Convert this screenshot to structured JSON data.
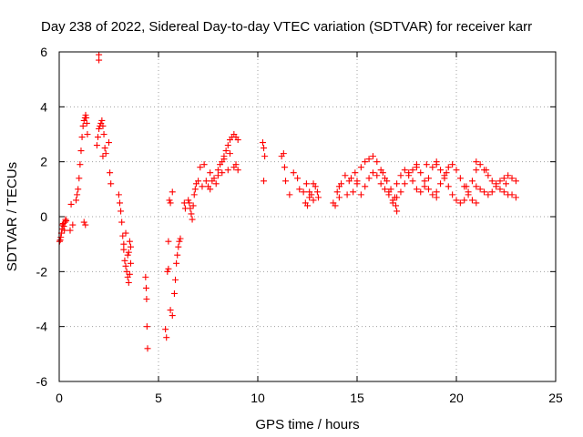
{
  "chart_data": {
    "type": "scatter",
    "title": "Day 238 of 2022, Sidereal Day-to-day VTEC variation (SDTVAR) for receiver karr",
    "xlabel": "GPS time / hours",
    "ylabel": "SDTVAR / TECUs",
    "xlim": [
      0,
      25
    ],
    "ylim": [
      -6,
      6
    ],
    "xticks": [
      0,
      5,
      10,
      15,
      20,
      25
    ],
    "yticks": [
      -6,
      -4,
      -2,
      0,
      2,
      4,
      6
    ],
    "xtick_labels": [
      "0",
      "5",
      "10",
      "15",
      "20",
      "25"
    ],
    "ytick_labels": [
      "-6",
      "-4",
      "-2",
      "0",
      "2",
      "4",
      "6"
    ],
    "grid": true,
    "marker": "+",
    "colors": {
      "series": "#ff0000",
      "grid": "#a0a0a0",
      "axes": "#000000"
    },
    "series": [
      {
        "name": "SDTVAR",
        "x": [
          0.02,
          0.05,
          0.08,
          0.11,
          0.14,
          0.17,
          0.2,
          0.23,
          0.26,
          0.29,
          0.32,
          0.35,
          0.55,
          0.6,
          0.68,
          0.85,
          0.9,
          0.95,
          1.0,
          1.05,
          1.1,
          1.15,
          1.2,
          1.25,
          1.3,
          1.33,
          1.36,
          1.39,
          1.42,
          1.25,
          1.32,
          1.9,
          1.95,
          2.0,
          2.05,
          2.1,
          2.15,
          2.2,
          2.25,
          2.3,
          2.2,
          2.35,
          2.5,
          2.55,
          2.6,
          2.0,
          2.0,
          3.0,
          3.05,
          3.1,
          3.15,
          3.2,
          3.25,
          3.3,
          3.35,
          3.4,
          3.45,
          3.5,
          3.55,
          3.6,
          3.25,
          3.35,
          3.45,
          3.5,
          3.55,
          3.6,
          4.35,
          4.38,
          4.4,
          4.42,
          4.45,
          5.35,
          5.4,
          5.45,
          5.5,
          5.6,
          5.7,
          5.8,
          5.85,
          5.9,
          5.95,
          6.0,
          6.05,
          6.1,
          5.5,
          5.55,
          5.6,
          5.7,
          6.3,
          6.35,
          6.5,
          6.55,
          6.6,
          6.65,
          6.7,
          6.75,
          6.8,
          6.85,
          6.9,
          7.0,
          7.2,
          7.4,
          7.6,
          7.8,
          8.0,
          8.1,
          8.2,
          8.3,
          8.4,
          8.5,
          8.6,
          8.7,
          8.8,
          8.9,
          9.0,
          7.5,
          7.7,
          8.0,
          8.2,
          8.5,
          8.8,
          9.0,
          7.1,
          7.3,
          7.6,
          7.9,
          8.3,
          8.6,
          8.9,
          10.25,
          10.3,
          10.35,
          10.3,
          11.2,
          11.3,
          11.35,
          11.4,
          11.6,
          11.8,
          12.0,
          12.1,
          12.3,
          12.45,
          12.6,
          12.8,
          13.0,
          12.4,
          12.5,
          12.7,
          12.9,
          13.05,
          12.6,
          12.8,
          13.8,
          13.9,
          14.0,
          14.1,
          14.2,
          14.1,
          14.4,
          14.5,
          14.6,
          14.7,
          14.8,
          14.9,
          15.0,
          15.0,
          15.2,
          15.4,
          15.6,
          15.8,
          16.0,
          16.2,
          16.4,
          16.6,
          16.8,
          17.0,
          15.2,
          15.4,
          15.6,
          15.8,
          16.0,
          16.2,
          16.4,
          16.6,
          16.8,
          16.95,
          16.3,
          16.5,
          16.7,
          16.9,
          17.0,
          17.2,
          17.4,
          17.6,
          17.8,
          18.0,
          18.2,
          18.4,
          18.6,
          18.8,
          19.0,
          17.0,
          17.2,
          17.4,
          17.6,
          17.8,
          18.0,
          18.2,
          18.4,
          18.6,
          18.8,
          19.0,
          19.0,
          19.2,
          19.4,
          19.6,
          19.8,
          20.0,
          20.2,
          20.4,
          20.6,
          20.8,
          21.0,
          19.0,
          19.2,
          19.4,
          19.6,
          19.8,
          20.0,
          20.2,
          20.4,
          20.6,
          20.8,
          21.0,
          21.0,
          21.2,
          21.4,
          21.6,
          21.8,
          22.0,
          22.2,
          22.4,
          22.6,
          22.8,
          23.0,
          21.0,
          21.2,
          21.4,
          21.6,
          21.8,
          22.0,
          22.2,
          22.4,
          22.6,
          22.8,
          23.0,
          18.0,
          18.5,
          19.5,
          20.5,
          21.5,
          22.5
        ],
        "y": [
          -0.9,
          -0.85,
          -0.75,
          -0.6,
          -0.45,
          -0.3,
          -0.25,
          -0.35,
          -0.5,
          -0.2,
          -0.1,
          -0.15,
          -0.5,
          0.45,
          -0.3,
          0.6,
          0.8,
          1.0,
          1.4,
          1.9,
          2.4,
          2.9,
          3.3,
          3.5,
          3.6,
          3.7,
          3.6,
          3.4,
          3.0,
          -0.2,
          -0.3,
          2.6,
          2.9,
          3.2,
          3.3,
          3.4,
          3.5,
          3.3,
          3.0,
          2.5,
          2.2,
          2.3,
          2.7,
          1.6,
          1.2,
          5.9,
          5.7,
          0.8,
          0.5,
          0.2,
          -0.2,
          -0.7,
          -1.2,
          -1.6,
          -1.8,
          -2.0,
          -2.2,
          -2.4,
          -2.1,
          -1.7,
          -1.0,
          -0.6,
          -1.4,
          -1.3,
          -0.9,
          -1.1,
          -2.2,
          -2.6,
          -3.0,
          -4.0,
          -4.8,
          -4.1,
          -4.4,
          -2.0,
          -1.9,
          -3.4,
          -3.6,
          -2.8,
          -2.3,
          -1.7,
          -1.4,
          -1.1,
          -0.9,
          -0.8,
          -0.9,
          0.6,
          0.5,
          0.9,
          0.5,
          0.3,
          0.6,
          0.5,
          0.3,
          0.1,
          -0.1,
          0.4,
          0.8,
          1.0,
          1.2,
          1.3,
          1.1,
          1.3,
          1.6,
          1.4,
          1.7,
          1.9,
          2.0,
          2.2,
          2.4,
          2.6,
          2.8,
          2.9,
          3.0,
          2.9,
          2.8,
          1.1,
          1.3,
          1.5,
          1.6,
          1.7,
          1.8,
          1.7,
          1.8,
          1.9,
          1.0,
          1.2,
          2.1,
          2.3,
          1.9,
          2.7,
          2.5,
          2.2,
          1.3,
          2.2,
          2.3,
          1.8,
          1.3,
          0.8,
          1.6,
          1.4,
          1.0,
          0.9,
          1.2,
          0.7,
          0.6,
          0.9,
          0.5,
          0.4,
          0.8,
          1.1,
          0.7,
          0.9,
          1.2,
          0.5,
          0.4,
          0.9,
          1.1,
          1.2,
          0.7,
          1.5,
          0.8,
          1.3,
          1.4,
          0.9,
          1.6,
          1.2,
          1.3,
          1.8,
          2.0,
          2.1,
          2.2,
          2.0,
          1.7,
          1.4,
          0.9,
          0.5,
          0.2,
          0.8,
          1.1,
          1.4,
          1.6,
          1.5,
          1.2,
          1.0,
          0.8,
          0.6,
          0.4,
          1.6,
          1.3,
          1.0,
          0.7,
          1.2,
          1.5,
          1.7,
          1.6,
          1.3,
          1.0,
          0.9,
          1.1,
          1.4,
          1.8,
          2.0,
          0.7,
          0.9,
          1.2,
          1.5,
          1.7,
          1.8,
          1.6,
          1.3,
          1.0,
          0.8,
          0.7,
          1.9,
          1.7,
          1.4,
          1.1,
          0.8,
          0.6,
          0.5,
          0.6,
          0.9,
          1.3,
          1.7,
          0.9,
          1.2,
          1.5,
          1.8,
          1.9,
          1.7,
          1.4,
          1.1,
          0.8,
          0.6,
          0.5,
          2.0,
          1.9,
          1.7,
          1.5,
          1.3,
          1.2,
          1.0,
          0.9,
          0.8,
          0.8,
          0.7,
          1.1,
          1.0,
          0.9,
          0.8,
          0.9,
          1.1,
          1.3,
          1.4,
          1.5,
          1.4,
          1.3,
          1.9,
          1.9,
          1.6,
          1.1,
          1.7,
          1.2
        ]
      }
    ]
  }
}
